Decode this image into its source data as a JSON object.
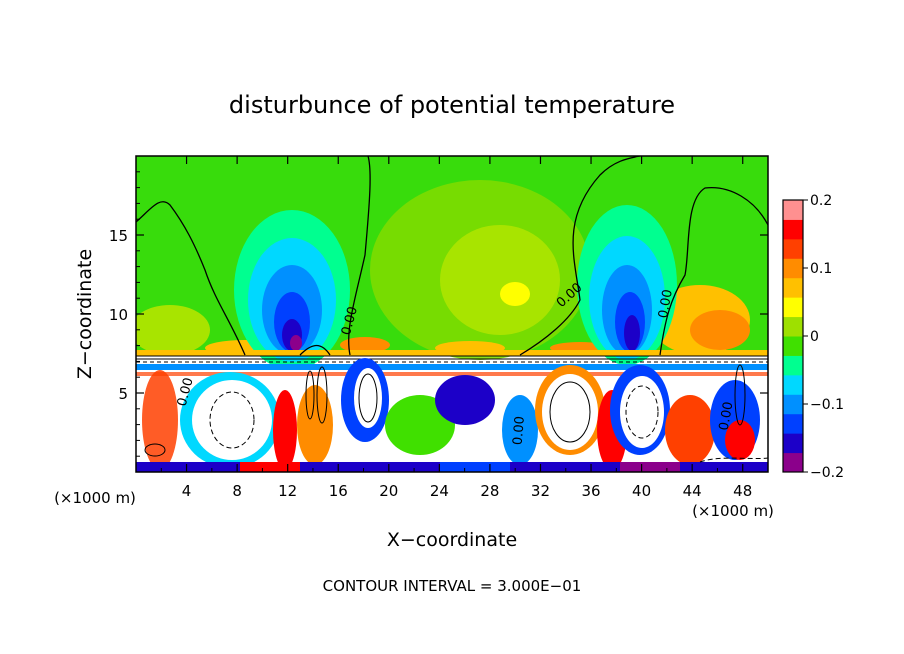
{
  "chart_data": {
    "type": "heatmap",
    "title": "disturbunce of potential temperature",
    "xlabel": "X−coordinate",
    "ylabel": "Z−coordinate",
    "x_unit_left": "(×1000 m)",
    "x_unit_right": "(×1000 m)",
    "footer": "CONTOUR INTERVAL = 3.000E−01",
    "xlim": [
      0,
      50
    ],
    "ylim": [
      0,
      20
    ],
    "x_ticks": [
      4,
      8,
      12,
      16,
      20,
      24,
      28,
      32,
      36,
      40,
      44,
      48
    ],
    "y_ticks": [
      5,
      10,
      15
    ],
    "colorbar": {
      "range": [
        -0.2,
        0.2
      ],
      "tick_values": [
        0.2,
        0.1,
        0,
        -0.1,
        -0.2
      ],
      "tick_labels": [
        "0.2",
        "0.1",
        "0",
        "−0.1",
        "−0.2"
      ],
      "colors": [
        "#8b008b",
        "#1c00c8",
        "#0040ff",
        "#0090ff",
        "#00d8ff",
        "#00ff90",
        "#40e000",
        "#9ee000",
        "#ffff00",
        "#ffc000",
        "#ff8c00",
        "#ff4000",
        "#ff0000",
        "#ff9090"
      ]
    },
    "contour_labels": [
      {
        "text": "0.00",
        "x": 17.2,
        "z": 9.5,
        "rotate": -75
      },
      {
        "text": "0.00",
        "x": 34.5,
        "z": 11.0,
        "rotate": -42
      },
      {
        "text": "0.00",
        "x": 42.2,
        "z": 10.6,
        "rotate": -80
      },
      {
        "text": "0.00",
        "x": 4.2,
        "z": 5.0,
        "rotate": -75
      },
      {
        "text": "0.00",
        "x": 30.6,
        "z": 2.6,
        "rotate": -85
      },
      {
        "text": "0.00",
        "x": 47.0,
        "z": 3.5,
        "rotate": -80
      }
    ]
  }
}
